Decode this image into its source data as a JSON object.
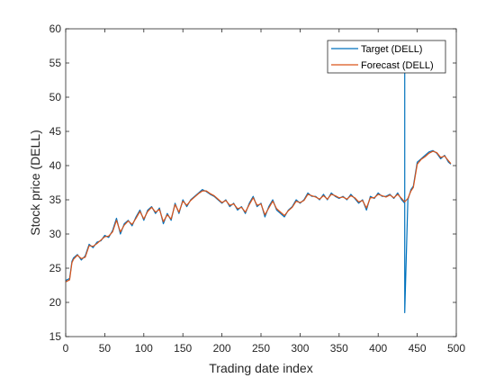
{
  "chart_data": {
    "type": "line",
    "title": "",
    "xlabel": "Trading date index",
    "ylabel": "Stock price (DELL)",
    "xlim": [
      0,
      500
    ],
    "ylim": [
      15,
      60
    ],
    "xticks": [
      0,
      50,
      100,
      150,
      200,
      250,
      300,
      350,
      400,
      450,
      500
    ],
    "yticks": [
      15,
      20,
      25,
      30,
      35,
      40,
      45,
      50,
      55,
      60
    ],
    "grid": false,
    "legend_position": "top-right",
    "series": [
      {
        "name": "Target (DELL)",
        "color": "#0072BD",
        "x": [
          0,
          5,
          8,
          10,
          15,
          20,
          25,
          30,
          35,
          40,
          45,
          50,
          55,
          60,
          65,
          70,
          75,
          80,
          85,
          90,
          95,
          100,
          105,
          110,
          115,
          120,
          125,
          130,
          135,
          140,
          145,
          150,
          155,
          160,
          165,
          170,
          175,
          180,
          185,
          190,
          195,
          200,
          205,
          210,
          215,
          220,
          225,
          230,
          235,
          240,
          245,
          250,
          255,
          260,
          265,
          270,
          275,
          280,
          285,
          290,
          295,
          300,
          305,
          310,
          315,
          320,
          325,
          330,
          335,
          340,
          345,
          350,
          355,
          360,
          365,
          370,
          375,
          380,
          385,
          390,
          395,
          400,
          405,
          410,
          415,
          420,
          425,
          430,
          434,
          434,
          434,
          438,
          442,
          445,
          450,
          455,
          460,
          465,
          470,
          475,
          480,
          485,
          490,
          493
        ],
        "y": [
          23.2,
          23.5,
          26.0,
          26.5,
          27.0,
          26.2,
          26.8,
          28.5,
          28.0,
          28.8,
          29.0,
          29.8,
          29.5,
          30.5,
          32.3,
          30.0,
          31.5,
          32.0,
          31.2,
          32.5,
          33.5,
          32.0,
          33.5,
          34.0,
          33.0,
          33.8,
          31.5,
          33.0,
          32.0,
          34.5,
          33.0,
          35.0,
          34.0,
          35.0,
          35.5,
          36.0,
          36.5,
          36.2,
          35.8,
          35.5,
          35.0,
          34.5,
          35.0,
          34.0,
          34.5,
          33.5,
          34.0,
          33.0,
          34.5,
          35.5,
          34.0,
          34.5,
          32.5,
          34.0,
          35.0,
          33.5,
          33.0,
          32.5,
          33.5,
          34.0,
          35.0,
          34.5,
          35.0,
          36.0,
          35.5,
          35.5,
          35.0,
          35.8,
          35.0,
          36.0,
          35.5,
          35.2,
          35.5,
          35.0,
          35.8,
          35.2,
          34.5,
          35.0,
          33.5,
          35.5,
          35.2,
          36.0,
          35.5,
          35.5,
          35.8,
          35.2,
          36.0,
          35.0,
          34.5,
          53.5,
          18.5,
          35.0,
          36.5,
          37.0,
          40.5,
          41.0,
          41.5,
          42.0,
          42.2,
          41.8,
          41.0,
          41.5,
          40.5,
          40.2
        ]
      },
      {
        "name": "Forecast (DELL)",
        "color": "#D95319",
        "x": [
          0,
          5,
          8,
          10,
          15,
          20,
          25,
          30,
          35,
          40,
          45,
          50,
          55,
          60,
          65,
          70,
          75,
          80,
          85,
          90,
          95,
          100,
          105,
          110,
          115,
          120,
          125,
          130,
          135,
          140,
          145,
          150,
          155,
          160,
          165,
          170,
          175,
          180,
          185,
          190,
          195,
          200,
          205,
          210,
          215,
          220,
          225,
          230,
          235,
          240,
          245,
          250,
          255,
          260,
          265,
          270,
          275,
          280,
          285,
          290,
          295,
          300,
          305,
          310,
          315,
          320,
          325,
          330,
          335,
          340,
          345,
          350,
          355,
          360,
          365,
          370,
          375,
          380,
          385,
          390,
          395,
          400,
          405,
          410,
          415,
          420,
          425,
          430,
          434,
          438,
          442,
          445,
          450,
          455,
          460,
          465,
          470,
          475,
          480,
          485,
          490,
          493
        ],
        "y": [
          23.0,
          23.3,
          25.8,
          26.3,
          26.9,
          26.4,
          26.6,
          28.3,
          28.2,
          28.6,
          29.1,
          29.6,
          29.7,
          30.3,
          32.0,
          30.3,
          31.3,
          31.9,
          31.4,
          32.3,
          33.3,
          32.2,
          33.3,
          33.9,
          33.2,
          33.6,
          31.8,
          32.8,
          32.2,
          34.3,
          33.2,
          34.8,
          34.2,
          34.9,
          35.4,
          35.9,
          36.3,
          36.3,
          35.9,
          35.6,
          35.1,
          34.6,
          34.9,
          34.2,
          34.4,
          33.7,
          33.9,
          33.2,
          34.3,
          35.3,
          34.2,
          34.4,
          32.8,
          33.8,
          34.8,
          33.7,
          33.2,
          32.7,
          33.4,
          33.9,
          34.8,
          34.6,
          34.9,
          35.8,
          35.6,
          35.4,
          35.1,
          35.6,
          35.1,
          35.8,
          35.6,
          35.3,
          35.4,
          35.1,
          35.6,
          35.3,
          34.7,
          34.9,
          33.8,
          35.3,
          35.3,
          35.8,
          35.6,
          35.4,
          35.7,
          35.3,
          35.8,
          35.2,
          34.7,
          35.2,
          36.3,
          36.8,
          40.2,
          40.9,
          41.3,
          41.8,
          42.1,
          41.9,
          41.2,
          41.4,
          40.7,
          40.3
        ]
      }
    ]
  }
}
